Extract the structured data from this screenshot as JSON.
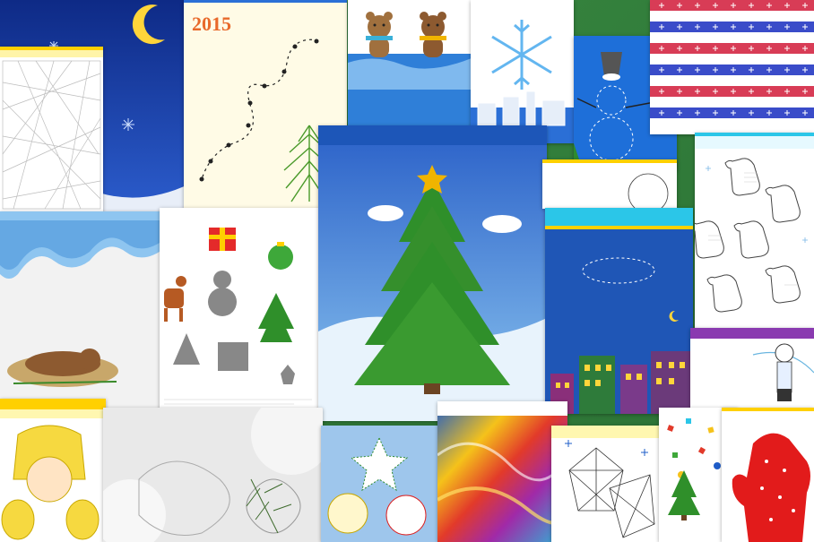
{
  "cards": {
    "year_sheet": {
      "year_text": "2015"
    },
    "tree_poster": {
      "caption_lines": [
        "",
        "",
        ""
      ]
    }
  },
  "colors": {
    "night_sky": "#1d3d9a",
    "moon": "#ffd53a",
    "tree_green": "#2f8f2a",
    "star_gold": "#f0b400",
    "mitten_red": "#e21b1b",
    "page_cream": "#fffbe6",
    "header_yellow": "#ffd000",
    "header_cyan": "#2bc6e8"
  },
  "icons": [
    "moon-icon",
    "snowflake-icon",
    "fir-branch-icon",
    "teddy-bear-icon",
    "star-icon",
    "gift-icon",
    "ornament-icon",
    "reindeer-icon",
    "snowman-icon",
    "mitten-icon",
    "church-icon",
    "house-icon",
    "bucket-icon",
    "christmas-tree-icon"
  ]
}
